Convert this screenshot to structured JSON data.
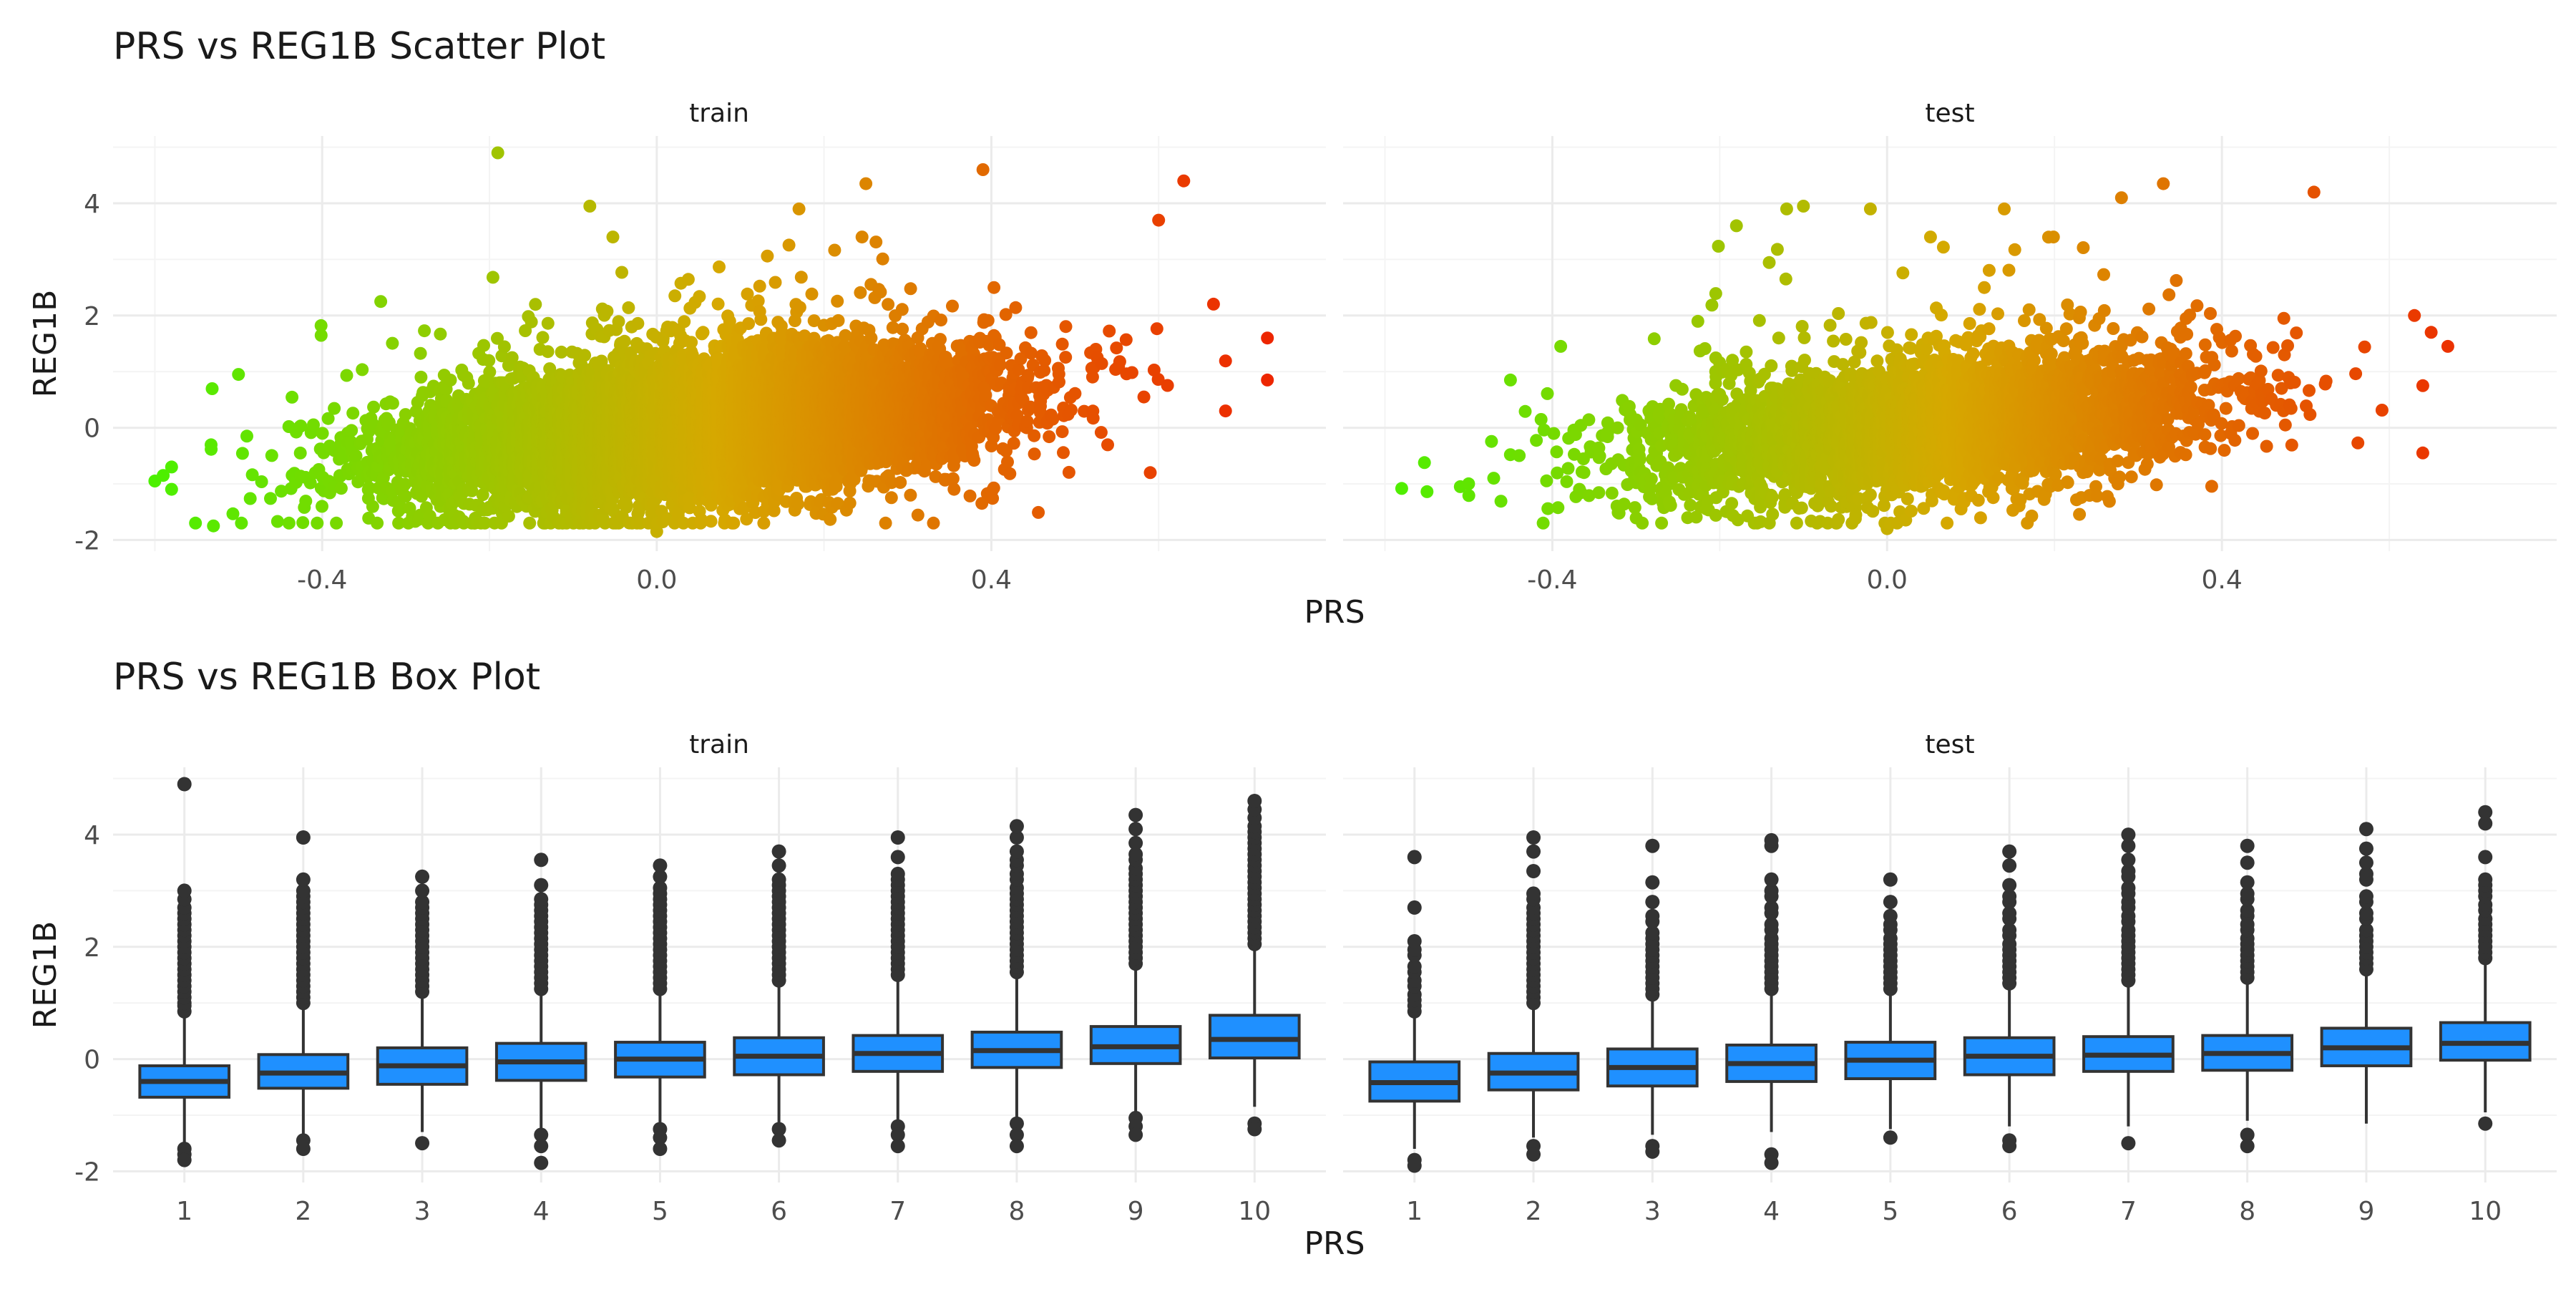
{
  "chart_data": [
    {
      "type": "scatter",
      "title": "PRS vs REG1B Scatter Plot",
      "xlabel": "PRS",
      "ylabel": "REG1B",
      "xlim": [
        -0.65,
        0.8
      ],
      "ylim": [
        -2.2,
        5.2
      ],
      "x_ticks": [
        -0.4,
        0.0,
        0.4
      ],
      "x_tick_labels": [
        "-0.4",
        "0.0",
        "0.4"
      ],
      "y_ticks": [
        -2,
        0,
        2,
        4
      ],
      "y_tick_labels": [
        "-2",
        "0",
        "2",
        "4"
      ],
      "grid": true,
      "color_gradient": {
        "low": "#4cf000",
        "mid": "#d6a800",
        "high": "#ee2200",
        "mapped_to": "PRS"
      },
      "facets": [
        {
          "label": "train",
          "trend": {
            "intercept": 0.0,
            "slope": 1.6,
            "sd": 0.6,
            "x_mean": 0.05,
            "x_sd": 0.17,
            "n_approx": 9000
          },
          "extreme_points": [
            {
              "x": -0.6,
              "y": -0.95
            },
            {
              "x": -0.59,
              "y": -0.85
            },
            {
              "x": -0.58,
              "y": -0.7
            },
            {
              "x": -0.53,
              "y": -1.75
            },
            {
              "x": -0.49,
              "y": -0.15
            },
            {
              "x": -0.5,
              "y": 0.95
            },
            {
              "x": -0.33,
              "y": 2.25
            },
            {
              "x": -0.19,
              "y": 4.9
            },
            {
              "x": -0.08,
              "y": 3.95
            },
            {
              "x": 0.0,
              "y": -1.85
            },
            {
              "x": 0.17,
              "y": 3.9
            },
            {
              "x": 0.25,
              "y": 4.35
            },
            {
              "x": 0.39,
              "y": 4.6
            },
            {
              "x": 0.6,
              "y": 3.7
            },
            {
              "x": 0.63,
              "y": 4.4
            },
            {
              "x": 0.73,
              "y": 0.85
            },
            {
              "x": 0.73,
              "y": 1.6
            },
            {
              "x": 0.59,
              "y": -0.8
            },
            {
              "x": 0.68,
              "y": 0.3
            }
          ]
        },
        {
          "label": "test",
          "trend": {
            "intercept": 0.0,
            "slope": 1.6,
            "sd": 0.6,
            "x_mean": 0.05,
            "x_sd": 0.17,
            "n_approx": 4000
          },
          "extreme_points": [
            {
              "x": -0.51,
              "y": -1.05
            },
            {
              "x": -0.5,
              "y": -1.0
            },
            {
              "x": -0.47,
              "y": -0.9
            },
            {
              "x": -0.45,
              "y": 0.85
            },
            {
              "x": -0.39,
              "y": 1.45
            },
            {
              "x": -0.18,
              "y": 3.6
            },
            {
              "x": -0.12,
              "y": 3.9
            },
            {
              "x": -0.1,
              "y": 3.95
            },
            {
              "x": -0.02,
              "y": 3.9
            },
            {
              "x": 0.0,
              "y": -1.8
            },
            {
              "x": 0.14,
              "y": 3.9
            },
            {
              "x": 0.28,
              "y": 4.1
            },
            {
              "x": 0.33,
              "y": 4.35
            },
            {
              "x": 0.51,
              "y": 4.2
            },
            {
              "x": 0.63,
              "y": 2.0
            },
            {
              "x": 0.65,
              "y": 1.7
            },
            {
              "x": 0.67,
              "y": 1.45
            },
            {
              "x": 0.64,
              "y": -0.45
            },
            {
              "x": 0.64,
              "y": 0.75
            }
          ]
        }
      ]
    },
    {
      "type": "box",
      "title": "PRS vs REG1B Box Plot",
      "xlabel": "PRS",
      "ylabel": "REG1B",
      "ylim": [
        -2.2,
        5.2
      ],
      "categories": [
        "1",
        "2",
        "3",
        "4",
        "5",
        "6",
        "7",
        "8",
        "9",
        "10"
      ],
      "y_ticks": [
        -2,
        0,
        2,
        4
      ],
      "y_tick_labels": [
        "-2",
        "0",
        "2",
        "4"
      ],
      "grid": true,
      "box_fill": "#1f90ff",
      "facets": [
        {
          "label": "train",
          "boxes": [
            {
              "q1": -0.68,
              "median": -0.4,
              "q3": -0.12,
              "lower": -1.5,
              "upper": 0.75,
              "outliers_high": [
                0.85,
                1.0,
                1.2,
                1.4,
                1.6,
                1.8,
                2.0,
                2.2,
                2.4,
                2.6,
                2.85,
                3.0,
                4.9
              ],
              "outliers_low": [
                -1.6,
                -1.7,
                -1.8
              ]
            },
            {
              "q1": -0.52,
              "median": -0.25,
              "q3": 0.08,
              "lower": -1.4,
              "upper": 0.95,
              "outliers_high": [
                1.0,
                1.2,
                1.4,
                1.6,
                1.8,
                2.0,
                2.2,
                2.4,
                2.6,
                2.8,
                3.0,
                3.2,
                3.95
              ],
              "outliers_low": [
                -1.45,
                -1.6
              ]
            },
            {
              "q1": -0.45,
              "median": -0.12,
              "q3": 0.2,
              "lower": -1.3,
              "upper": 1.15,
              "outliers_high": [
                1.2,
                1.4,
                1.6,
                1.8,
                2.0,
                2.2,
                2.4,
                2.6,
                2.8,
                3.0,
                3.25
              ],
              "outliers_low": [
                -1.5
              ]
            },
            {
              "q1": -0.38,
              "median": -0.05,
              "q3": 0.28,
              "lower": -1.3,
              "upper": 1.2,
              "outliers_high": [
                1.25,
                1.45,
                1.65,
                1.85,
                2.05,
                2.25,
                2.45,
                2.65,
                2.85,
                3.1,
                3.55
              ],
              "outliers_low": [
                -1.35,
                -1.55,
                -1.85
              ]
            },
            {
              "q1": -0.32,
              "median": 0.0,
              "q3": 0.3,
              "lower": -1.2,
              "upper": 1.2,
              "outliers_high": [
                1.25,
                1.45,
                1.65,
                1.85,
                2.05,
                2.25,
                2.45,
                2.65,
                2.85,
                3.05,
                3.25,
                3.45
              ],
              "outliers_low": [
                -1.25,
                -1.4,
                -1.6
              ]
            },
            {
              "q1": -0.28,
              "median": 0.05,
              "q3": 0.38,
              "lower": -1.2,
              "upper": 1.35,
              "outliers_high": [
                1.4,
                1.6,
                1.8,
                2.0,
                2.2,
                2.4,
                2.6,
                2.8,
                3.0,
                3.2,
                3.45,
                3.7
              ],
              "outliers_low": [
                -1.25,
                -1.45
              ]
            },
            {
              "q1": -0.22,
              "median": 0.1,
              "q3": 0.42,
              "lower": -1.15,
              "upper": 1.45,
              "outliers_high": [
                1.5,
                1.7,
                1.9,
                2.1,
                2.3,
                2.5,
                2.7,
                2.9,
                3.1,
                3.3,
                3.6,
                3.95
              ],
              "outliers_low": [
                -1.2,
                -1.35,
                -1.55
              ]
            },
            {
              "q1": -0.15,
              "median": 0.15,
              "q3": 0.48,
              "lower": -1.1,
              "upper": 1.5,
              "outliers_high": [
                1.55,
                1.75,
                1.95,
                2.15,
                2.35,
                2.55,
                2.75,
                2.95,
                3.2,
                3.45,
                3.7,
                3.95,
                4.15
              ],
              "outliers_low": [
                -1.15,
                -1.35,
                -1.55
              ]
            },
            {
              "q1": -0.08,
              "median": 0.22,
              "q3": 0.58,
              "lower": -1.0,
              "upper": 1.65,
              "outliers_high": [
                1.7,
                1.9,
                2.1,
                2.3,
                2.5,
                2.7,
                2.9,
                3.1,
                3.3,
                3.55,
                3.85,
                4.1,
                4.35
              ],
              "outliers_low": [
                -1.05,
                -1.2,
                -1.35
              ]
            },
            {
              "q1": 0.02,
              "median": 0.35,
              "q3": 0.78,
              "lower": -0.85,
              "upper": 2.0,
              "outliers_high": [
                2.05,
                2.25,
                2.45,
                2.65,
                2.85,
                3.05,
                3.25,
                3.45,
                3.65,
                3.85,
                4.05,
                4.3,
                4.45,
                4.6
              ],
              "outliers_low": [
                -1.15,
                -1.25
              ]
            }
          ]
        },
        {
          "label": "test",
          "boxes": [
            {
              "q1": -0.75,
              "median": -0.42,
              "q3": -0.05,
              "lower": -1.6,
              "upper": 0.75,
              "outliers_high": [
                0.85,
                1.05,
                1.3,
                1.55,
                1.85,
                2.1,
                2.7,
                3.6
              ],
              "outliers_low": [
                -1.8,
                -1.9
              ]
            },
            {
              "q1": -0.55,
              "median": -0.25,
              "q3": 0.1,
              "lower": -1.4,
              "upper": 0.95,
              "outliers_high": [
                1.0,
                1.2,
                1.4,
                1.6,
                1.8,
                2.0,
                2.2,
                2.4,
                2.6,
                2.85,
                3.35,
                3.7,
                3.95
              ],
              "outliers_low": [
                -1.55,
                -1.7
              ]
            },
            {
              "q1": -0.48,
              "median": -0.15,
              "q3": 0.18,
              "lower": -1.35,
              "upper": 1.1,
              "outliers_high": [
                1.15,
                1.35,
                1.55,
                1.75,
                1.95,
                2.15,
                2.45,
                2.8,
                3.15,
                3.8
              ],
              "outliers_low": [
                -1.55,
                -1.65
              ]
            },
            {
              "q1": -0.4,
              "median": -0.08,
              "q3": 0.25,
              "lower": -1.3,
              "upper": 1.2,
              "outliers_high": [
                1.25,
                1.45,
                1.65,
                1.85,
                2.05,
                2.3,
                2.6,
                2.9,
                3.2,
                3.8,
                3.9
              ],
              "outliers_low": [
                -1.7,
                -1.85
              ]
            },
            {
              "q1": -0.35,
              "median": -0.02,
              "q3": 0.3,
              "lower": -1.25,
              "upper": 1.2,
              "outliers_high": [
                1.25,
                1.45,
                1.65,
                1.85,
                2.05,
                2.3,
                2.55,
                2.8,
                3.2
              ],
              "outliers_low": [
                -1.4
              ]
            },
            {
              "q1": -0.28,
              "median": 0.05,
              "q3": 0.38,
              "lower": -1.2,
              "upper": 1.3,
              "outliers_high": [
                1.35,
                1.55,
                1.75,
                1.95,
                2.2,
                2.5,
                2.8,
                3.1,
                3.45,
                3.7
              ],
              "outliers_low": [
                -1.45,
                -1.55
              ]
            },
            {
              "q1": -0.22,
              "median": 0.07,
              "q3": 0.4,
              "lower": -1.2,
              "upper": 1.35,
              "outliers_high": [
                1.4,
                1.6,
                1.8,
                2.0,
                2.2,
                2.45,
                2.7,
                2.95,
                3.25,
                3.55,
                3.8,
                4.0
              ],
              "outliers_low": [
                -1.5
              ]
            },
            {
              "q1": -0.2,
              "median": 0.1,
              "q3": 0.42,
              "lower": -1.1,
              "upper": 1.4,
              "outliers_high": [
                1.45,
                1.65,
                1.85,
                2.05,
                2.3,
                2.55,
                2.85,
                3.15,
                3.5,
                3.8
              ],
              "outliers_low": [
                -1.35,
                -1.55
              ]
            },
            {
              "q1": -0.12,
              "median": 0.2,
              "q3": 0.55,
              "lower": -1.15,
              "upper": 1.55,
              "outliers_high": [
                1.6,
                1.8,
                2.0,
                2.2,
                2.5,
                2.8,
                3.2,
                3.5,
                3.75,
                4.1
              ]
            },
            {
              "q1": -0.02,
              "median": 0.28,
              "q3": 0.65,
              "lower": -0.95,
              "upper": 1.7,
              "outliers_high": [
                1.8,
                2.0,
                2.2,
                2.4,
                2.65,
                2.9,
                3.1,
                3.6,
                4.2,
                4.4
              ],
              "outliers_low": [
                -1.15
              ]
            }
          ]
        }
      ]
    }
  ]
}
